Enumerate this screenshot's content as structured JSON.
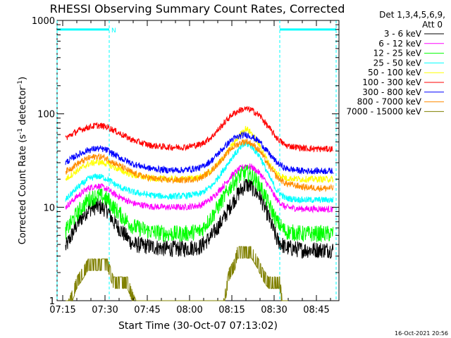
{
  "chart_data": {
    "type": "line",
    "title": "RHESSI Observing Summary Count Rates, Corrected",
    "xlabel": "Start Time (30-Oct-07 07:13:02)",
    "ylabel": "Corrected Count Rate (s⁻¹ detector⁻¹)",
    "ylabel_main": "Corrected Count Rate (s",
    "ylabel_sup1": "-1",
    "ylabel_mid": " detector",
    "ylabel_sup2": "-1",
    "ylabel_end": ")",
    "x_range_min": [
      7.217,
      8.833
    ],
    "y_range": [
      1,
      1000
    ],
    "y_scale": "log",
    "x_ticks": [
      {
        "label": "07:15",
        "min": 435
      },
      {
        "label": "07:30",
        "min": 450
      },
      {
        "label": "07:45",
        "min": 465
      },
      {
        "label": "08:00",
        "min": 480
      },
      {
        "label": "08:15",
        "min": 495
      },
      {
        "label": "08:30",
        "min": 510
      },
      {
        "label": "08:45",
        "min": 525
      }
    ],
    "y_ticks": [
      {
        "label": "1",
        "v": 1
      },
      {
        "label": "10",
        "v": 10
      },
      {
        "label": "100",
        "v": 100
      },
      {
        "label": "1000",
        "v": 1000
      }
    ],
    "legend_header": [
      "Det 1,3,4,5,6,9,",
      "Att 0"
    ],
    "legend_placement": "right",
    "timestamp": "16-Oct-2021 20:56",
    "night_marker_label": "N",
    "night_bars": [
      {
        "start": 433,
        "end": 451.5
      },
      {
        "start": 512,
        "end": 532
      }
    ],
    "series": [
      {
        "name": "3 - 6 keV",
        "color": "#000000",
        "x": [
          436,
          440,
          444,
          447,
          449,
          451,
          453,
          456,
          460,
          466,
          472,
          478,
          484,
          488,
          492,
          495,
          498,
          500,
          502,
          505,
          508,
          511,
          514,
          520,
          526,
          531
        ],
        "y": [
          3.7,
          6.5,
          9.5,
          10.2,
          10.0,
          9.2,
          7.0,
          5.5,
          4.0,
          3.8,
          3.6,
          3.6,
          3.8,
          5.0,
          7.5,
          11.0,
          15.0,
          17.5,
          16.5,
          13.0,
          8.0,
          4.5,
          3.7,
          3.5,
          3.5,
          3.5
        ]
      },
      {
        "name": "6 - 12 keV",
        "color": "#ff00ff",
        "x": [
          436,
          440,
          444,
          447,
          449,
          451,
          453,
          456,
          460,
          466,
          472,
          478,
          484,
          488,
          492,
          495,
          498,
          500,
          502,
          505,
          508,
          511,
          514,
          520,
          526,
          531
        ],
        "y": [
          10.0,
          13.0,
          16.0,
          17.0,
          16.5,
          15.5,
          14.0,
          12.5,
          11.0,
          10.2,
          10.0,
          10.0,
          10.5,
          12.5,
          17.0,
          22.0,
          26.0,
          28.0,
          27.0,
          23.0,
          17.0,
          12.0,
          10.0,
          9.6,
          9.6,
          9.5
        ]
      },
      {
        "name": "12 - 25 keV",
        "color": "#00ff00",
        "x": [
          436,
          440,
          444,
          447,
          449,
          451,
          453,
          456,
          460,
          466,
          472,
          478,
          484,
          488,
          492,
          495,
          498,
          500,
          502,
          505,
          508,
          511,
          514,
          520,
          526,
          531
        ],
        "y": [
          5.5,
          8.5,
          12.0,
          13.2,
          13.0,
          12.0,
          10.0,
          8.0,
          6.2,
          5.5,
          5.2,
          5.2,
          5.6,
          8.0,
          12.5,
          17.5,
          22.0,
          23.5,
          22.0,
          17.0,
          11.0,
          7.0,
          5.5,
          5.2,
          5.2,
          5.2
        ]
      },
      {
        "name": "25 - 50 keV",
        "color": "#00ffff",
        "x": [
          436,
          440,
          444,
          447,
          449,
          451,
          453,
          456,
          460,
          466,
          472,
          478,
          484,
          488,
          492,
          495,
          498,
          500,
          502,
          505,
          508,
          511,
          514,
          520,
          526,
          531
        ],
        "y": [
          12.0,
          16.0,
          20.0,
          21.5,
          21.0,
          20.0,
          18.0,
          16.0,
          14.5,
          13.5,
          13.0,
          13.2,
          14.0,
          17.0,
          25.0,
          34.0,
          43.0,
          48.0,
          45.0,
          35.0,
          22.0,
          15.0,
          12.5,
          12.0,
          12.0,
          12.0
        ]
      },
      {
        "name": "50 - 100 keV",
        "color": "#ffff00",
        "x": [
          436,
          440,
          444,
          447,
          449,
          451,
          453,
          456,
          460,
          466,
          472,
          478,
          484,
          488,
          492,
          495,
          498,
          500,
          502,
          505,
          508,
          511,
          514,
          520,
          526,
          531
        ],
        "y": [
          20.0,
          24.5,
          29.0,
          30.5,
          30.0,
          29.0,
          27.0,
          24.5,
          22.0,
          20.5,
          20.0,
          20.0,
          21.0,
          25.0,
          34.0,
          45.0,
          60.0,
          70.0,
          62.0,
          45.0,
          30.0,
          23.0,
          20.5,
          20.0,
          20.0,
          20.0
        ]
      },
      {
        "name": "100 - 300 keV",
        "color": "#ff0000",
        "x": [
          436,
          440,
          444,
          447,
          449,
          451,
          453,
          456,
          460,
          466,
          472,
          478,
          484,
          488,
          492,
          495,
          498,
          500,
          502,
          505,
          508,
          511,
          514,
          520,
          526,
          531
        ],
        "y": [
          55.0,
          65.0,
          72.0,
          75.0,
          74.0,
          72.0,
          67.0,
          60.0,
          52.0,
          46.0,
          44.0,
          44.0,
          47.0,
          57.0,
          78.0,
          98.0,
          110.0,
          113.0,
          110.0,
          95.0,
          72.0,
          55.0,
          46.0,
          43.0,
          42.0,
          42.0
        ]
      },
      {
        "name": "300 - 800 keV",
        "color": "#0000ff",
        "x": [
          436,
          440,
          444,
          447,
          449,
          451,
          453,
          456,
          460,
          466,
          472,
          478,
          484,
          488,
          492,
          495,
          498,
          500,
          502,
          505,
          508,
          511,
          514,
          520,
          526,
          531
        ],
        "y": [
          30.0,
          36.0,
          41.0,
          42.5,
          42.0,
          40.5,
          37.0,
          33.0,
          29.0,
          26.0,
          25.0,
          25.0,
          26.5,
          32.0,
          43.0,
          53.0,
          58.0,
          60.0,
          57.0,
          50.0,
          38.0,
          30.0,
          26.0,
          24.5,
          24.5,
          24.5
        ]
      },
      {
        "name": "800 - 7000 keV",
        "color": "#ff8c00",
        "x": [
          436,
          440,
          444,
          447,
          449,
          451,
          453,
          456,
          460,
          466,
          472,
          478,
          484,
          488,
          492,
          495,
          498,
          500,
          502,
          505,
          508,
          511,
          514,
          520,
          526,
          531
        ],
        "y": [
          24.0,
          29.0,
          33.5,
          35.0,
          34.5,
          33.0,
          30.0,
          27.0,
          23.0,
          20.5,
          19.5,
          19.5,
          20.5,
          25.0,
          34.0,
          43.0,
          49.0,
          51.0,
          48.0,
          40.0,
          28.0,
          21.0,
          18.0,
          16.5,
          16.0,
          16.0
        ]
      },
      {
        "name": "7000 - 15000 keV",
        "color": "#808000",
        "x": [
          436,
          437,
          440,
          444,
          448,
          451,
          453,
          455,
          458,
          461,
          492,
          494,
          496,
          497,
          498,
          500,
          502,
          504,
          506,
          508,
          510,
          512,
          513,
          515
        ],
        "y": [
          1.0,
          1.0,
          1.8,
          2.8,
          2.8,
          2.8,
          1.8,
          1.8,
          1.8,
          1.0,
          1.0,
          2.2,
          2.8,
          3.8,
          3.8,
          3.8,
          3.8,
          3.0,
          2.2,
          1.8,
          1.8,
          1.8,
          1.0,
          1.0
        ]
      }
    ]
  }
}
